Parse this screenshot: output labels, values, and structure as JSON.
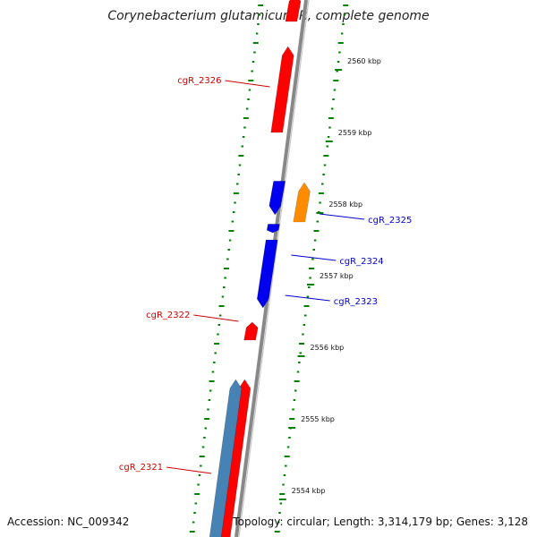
{
  "title": "Corynebacterium glutamicum R, complete genome",
  "accession": "Accession: NC_009342",
  "topology": "Topology: circular; Length: 3,314,179 bp; Genes: 3,128",
  "colors": {
    "forward_gene": "#ff0000",
    "reverse_gene": "#0000ee",
    "orange_gene": "#ff8c00",
    "steel_gene": "#4682b4",
    "backbone": "#888888",
    "ticks": "#008000",
    "label_forward": "#cc0000",
    "label_reverse": "#0000cc"
  },
  "kbp_labels": [
    {
      "kbp": 2560,
      "text": "2560 kbp"
    },
    {
      "kbp": 2559,
      "text": "2559 kbp"
    },
    {
      "kbp": 2558,
      "text": "2558 kbp"
    },
    {
      "kbp": 2557,
      "text": "2557 kbp"
    },
    {
      "kbp": 2556,
      "text": "2556 kbp"
    },
    {
      "kbp": 2555,
      "text": "2555 kbp"
    },
    {
      "kbp": 2554,
      "text": "2554 kbp"
    }
  ],
  "genes": [
    {
      "start_kbp": 2560.55,
      "end_kbp": 2560.95,
      "strand": "forward",
      "color": "forward_gene",
      "label": ""
    },
    {
      "start_kbp": 2559.0,
      "end_kbp": 2560.2,
      "strand": "forward",
      "color": "forward_gene",
      "label": "cgR_2326"
    },
    {
      "start_kbp": 2557.75,
      "end_kbp": 2558.3,
      "strand": "forward",
      "color": "orange_gene",
      "label": "cgR_2325",
      "track": "outer"
    },
    {
      "start_kbp": 2557.85,
      "end_kbp": 2558.32,
      "strand": "reverse",
      "color": "reverse_gene",
      "label": ""
    },
    {
      "start_kbp": 2557.6,
      "end_kbp": 2557.72,
      "strand": "reverse",
      "color": "reverse_gene",
      "label": "cgR_2324"
    },
    {
      "start_kbp": 2556.55,
      "end_kbp": 2557.5,
      "strand": "reverse",
      "color": "reverse_gene",
      "label": "cgR_2323"
    },
    {
      "start_kbp": 2556.1,
      "end_kbp": 2556.35,
      "strand": "forward",
      "color": "forward_gene",
      "label": "cgR_2322"
    },
    {
      "start_kbp": 2553.0,
      "end_kbp": 2555.55,
      "strand": "forward",
      "color": "forward_gene",
      "label": ""
    },
    {
      "start_kbp": 2553.0,
      "end_kbp": 2555.55,
      "strand": "forward",
      "color": "steel_gene",
      "label": "cgR_2321",
      "track": "inner"
    }
  ]
}
